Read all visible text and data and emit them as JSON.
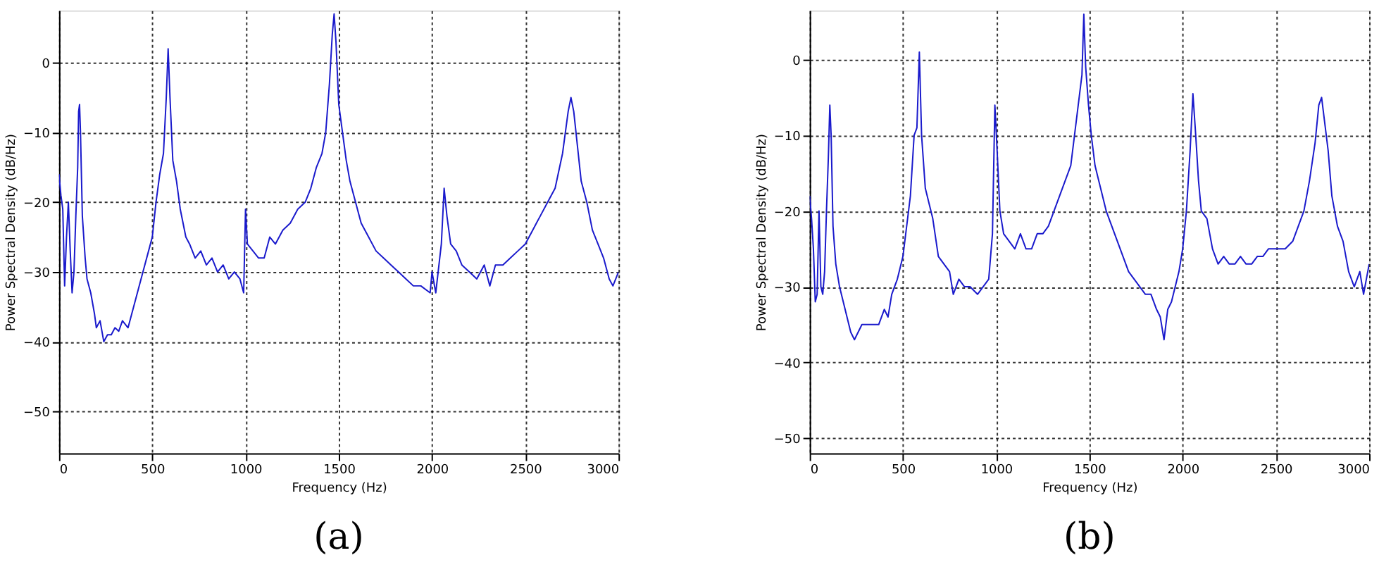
{
  "chart_data": [
    {
      "type": "line",
      "xlabel": "Frequency (Hz)",
      "ylabel": "Power Spectral Density (dB/Hz)",
      "annotations": [
        "(a)"
      ],
      "xlim": [
        0,
        3000
      ],
      "ylim": [
        -56,
        7.5
      ],
      "xticks": [
        0,
        500,
        1000,
        1500,
        2000,
        2500,
        3000
      ],
      "yticks": [
        -50,
        -40,
        -30,
        -20,
        -10,
        0
      ],
      "grid": true,
      "legend": false,
      "marker": "none",
      "line_style": "solid",
      "x": [
        0,
        10,
        20,
        30,
        40,
        50,
        60,
        70,
        80,
        90,
        100,
        105,
        110,
        115,
        125,
        140,
        150,
        170,
        190,
        200,
        220,
        240,
        260,
        280,
        300,
        320,
        340,
        370,
        390,
        420,
        450,
        480,
        500,
        520,
        540,
        560,
        575,
        585,
        595,
        610,
        630,
        650,
        680,
        700,
        730,
        760,
        790,
        820,
        850,
        880,
        910,
        940,
        970,
        990,
        1000,
        1010,
        1040,
        1070,
        1100,
        1130,
        1160,
        1200,
        1240,
        1280,
        1320,
        1350,
        1380,
        1410,
        1430,
        1450,
        1465,
        1475,
        1485,
        1500,
        1520,
        1540,
        1560,
        1590,
        1620,
        1660,
        1700,
        1740,
        1780,
        1820,
        1860,
        1900,
        1940,
        1990,
        2000,
        2020,
        2050,
        2065,
        2080,
        2100,
        2130,
        2160,
        2200,
        2240,
        2280,
        2310,
        2340,
        2380,
        2420,
        2460,
        2500,
        2540,
        2580,
        2620,
        2660,
        2700,
        2730,
        2745,
        2760,
        2780,
        2800,
        2830,
        2860,
        2890,
        2920,
        2950,
        2970,
        3000
      ],
      "series": [
        {
          "color": "#1a1acc",
          "values": [
            -16,
            -19,
            -21,
            -32,
            -25,
            -20,
            -27,
            -33,
            -30,
            -22,
            -15,
            -7,
            -6,
            -10,
            -22,
            -28,
            -31,
            -33,
            -36,
            -38,
            -37,
            -40,
            -39,
            -39,
            -38,
            -38.5,
            -37,
            -38,
            -36,
            -33,
            -30,
            -27,
            -25,
            -20,
            -16,
            -13,
            -5,
            2,
            -5,
            -14,
            -17,
            -21,
            -25,
            -26,
            -28,
            -27,
            -29,
            -28,
            -30,
            -29,
            -31,
            -30,
            -31,
            -33,
            -21,
            -26,
            -27,
            -28,
            -28,
            -25,
            -26,
            -24,
            -23,
            -21,
            -20,
            -18,
            -15,
            -13,
            -10,
            -3,
            4,
            7,
            3,
            -6,
            -10,
            -14,
            -17,
            -20,
            -23,
            -25,
            -27,
            -28,
            -29,
            -30,
            -31,
            -32,
            -32,
            -33,
            -30,
            -33,
            -26,
            -18,
            -22,
            -26,
            -27,
            -29,
            -30,
            -31,
            -29,
            -32,
            -29,
            -29,
            -28,
            -27,
            -26,
            -24,
            -22,
            -20,
            -18,
            -13,
            -7,
            -5,
            -7,
            -12,
            -17,
            -20,
            -24,
            -26,
            -28,
            -31,
            -32,
            -30
          ]
        }
      ]
    },
    {
      "type": "line",
      "xlabel": "Frequency (Hz)",
      "ylabel": "Power Spectral Density (dB/Hz)",
      "annotations": [
        "(b)"
      ],
      "xlim": [
        0,
        3000
      ],
      "ylim": [
        -52,
        6.5
      ],
      "xticks": [
        0,
        500,
        1000,
        1500,
        2000,
        2500,
        3000
      ],
      "yticks": [
        -50,
        -40,
        -30,
        -20,
        -10,
        0
      ],
      "grid": true,
      "legend": false,
      "marker": "none",
      "line_style": "solid",
      "x": [
        0,
        10,
        20,
        30,
        40,
        50,
        60,
        70,
        80,
        90,
        100,
        108,
        115,
        125,
        140,
        160,
        180,
        200,
        220,
        240,
        260,
        280,
        310,
        340,
        370,
        400,
        420,
        440,
        470,
        500,
        520,
        540,
        560,
        575,
        588,
        600,
        620,
        640,
        660,
        690,
        720,
        750,
        770,
        800,
        830,
        860,
        900,
        930,
        960,
        980,
        993,
        1005,
        1020,
        1040,
        1070,
        1100,
        1130,
        1160,
        1190,
        1220,
        1250,
        1280,
        1310,
        1340,
        1370,
        1400,
        1420,
        1440,
        1460,
        1470,
        1480,
        1495,
        1510,
        1530,
        1560,
        1590,
        1620,
        1650,
        1680,
        1710,
        1740,
        1770,
        1800,
        1830,
        1860,
        1880,
        1900,
        1920,
        1940,
        1960,
        1980,
        2000,
        2020,
        2040,
        2055,
        2070,
        2085,
        2100,
        2130,
        2160,
        2190,
        2220,
        2250,
        2280,
        2310,
        2340,
        2370,
        2400,
        2430,
        2460,
        2490,
        2520,
        2550,
        2590,
        2620,
        2650,
        2680,
        2710,
        2730,
        2745,
        2760,
        2780,
        2800,
        2830,
        2860,
        2890,
        2920,
        2950,
        2970,
        3000
      ],
      "series": [
        {
          "color": "#1a1acc",
          "values": [
            -18,
            -21,
            -25,
            -32,
            -31,
            -20,
            -30,
            -31,
            -28,
            -20,
            -13,
            -6,
            -10,
            -22,
            -27,
            -30,
            -32,
            -34,
            -36,
            -37,
            -36,
            -35,
            -35,
            -35,
            -35,
            -33,
            -34,
            -31,
            -29,
            -26,
            -22,
            -18,
            -10,
            -9,
            1,
            -10,
            -17,
            -19,
            -21,
            -26,
            -27,
            -28,
            -31,
            -29,
            -30,
            -30,
            -31,
            -30,
            -29,
            -23,
            -6,
            -12,
            -20,
            -23,
            -24,
            -25,
            -23,
            -25,
            -25,
            -23,
            -23,
            -22,
            -20,
            -18,
            -16,
            -14,
            -10,
            -6,
            -2,
            6,
            -1,
            -6,
            -10,
            -14,
            -17,
            -20,
            -22,
            -24,
            -26,
            -28,
            -29,
            -30,
            -31,
            -31,
            -33,
            -34,
            -37,
            -33,
            -32,
            -30,
            -28,
            -25,
            -20,
            -12,
            -4.5,
            -10,
            -16,
            -20,
            -21,
            -25,
            -27,
            -26,
            -27,
            -27,
            -26,
            -27,
            -27,
            -26,
            -26,
            -25,
            -25,
            -25,
            -25,
            -24,
            -22,
            -20,
            -16,
            -11,
            -6,
            -5,
            -8,
            -12,
            -18,
            -22,
            -24,
            -28,
            -30,
            -28,
            -31,
            -27
          ]
        }
      ]
    }
  ]
}
